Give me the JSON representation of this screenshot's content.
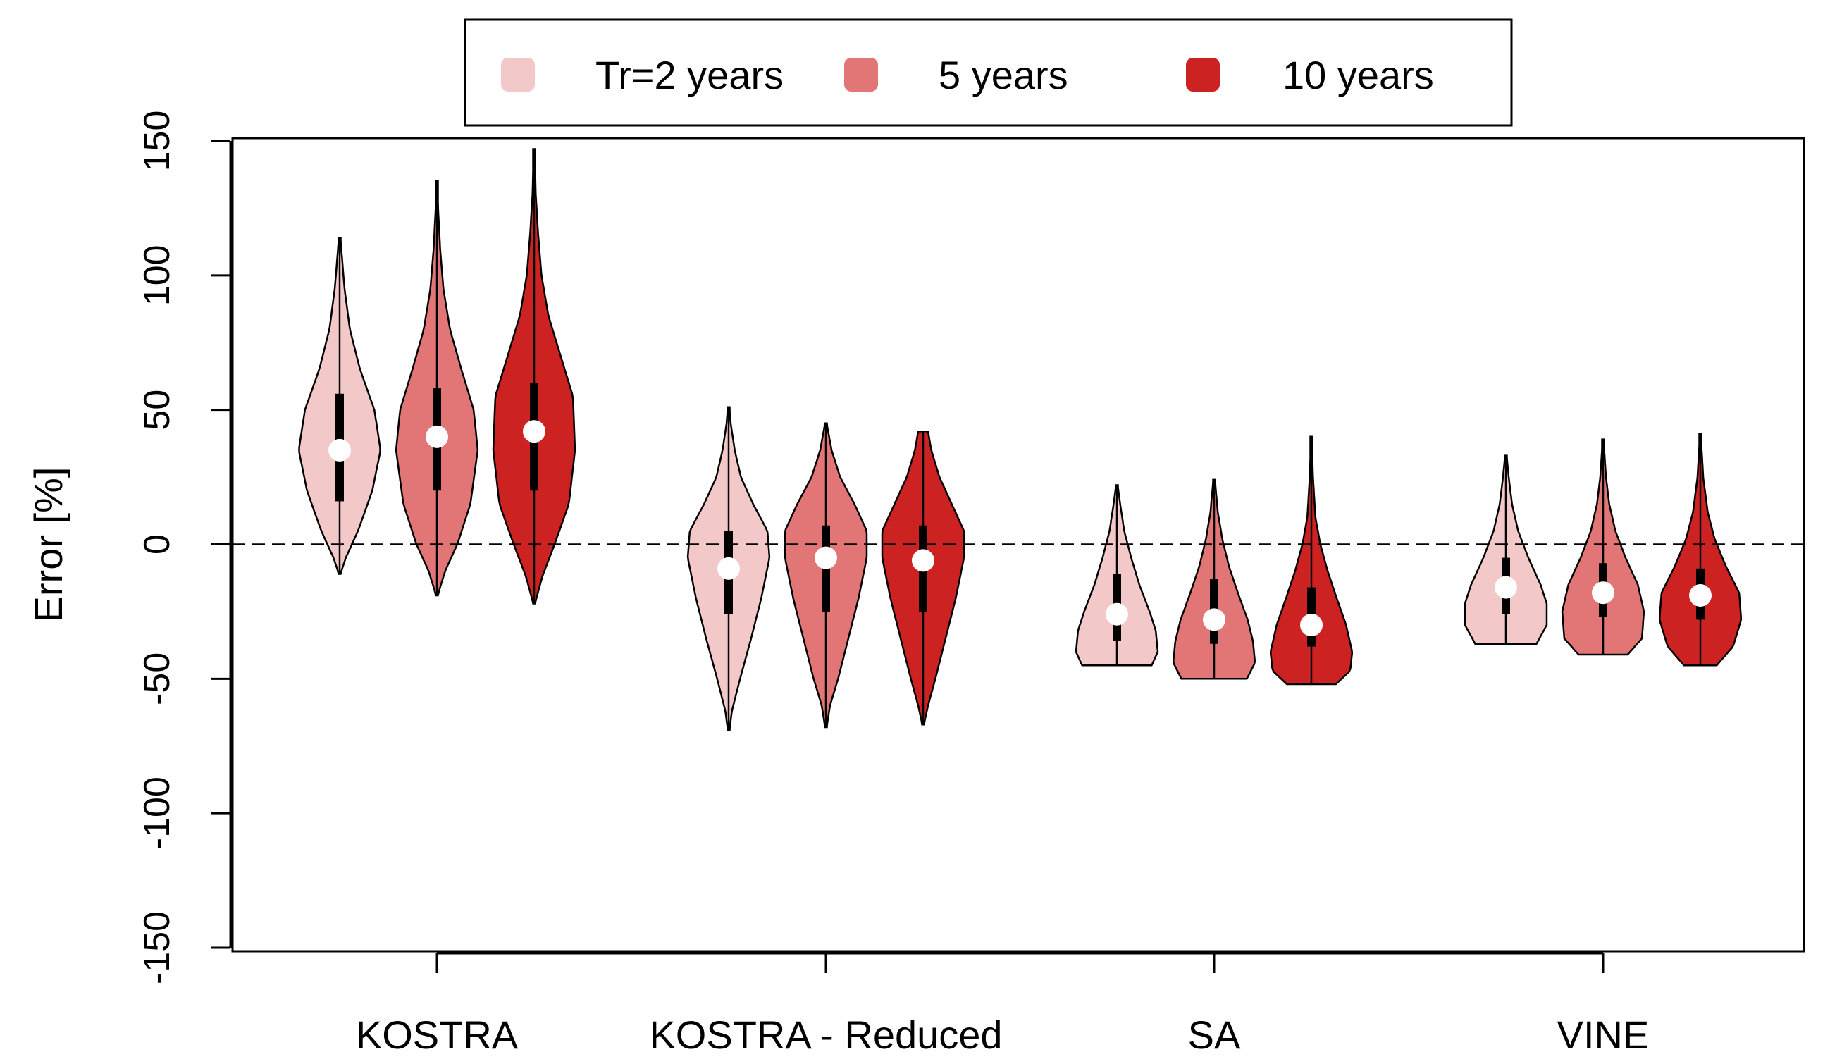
{
  "chart_data": {
    "type": "violin",
    "title": "",
    "xlabel": "",
    "ylabel": "Error [%]",
    "ylim": [
      -150,
      150
    ],
    "yticks": [
      -150,
      -100,
      -50,
      0,
      50,
      100,
      150
    ],
    "ytick_labels": [
      "-150",
      "-100",
      "-50",
      "0",
      "50",
      "100",
      "150"
    ],
    "reference_line": {
      "y": 0,
      "style": "dashed"
    },
    "categories": [
      "KOSTRA",
      "KOSTRA - Reduced",
      "SA",
      "VINE"
    ],
    "legend": {
      "position": "top-center",
      "entries": [
        {
          "label": "Tr=2 years",
          "color": "#f2c8c8"
        },
        {
          "label": "5 years",
          "color": "#e27676"
        },
        {
          "label": "10 years",
          "color": "#cc2222"
        }
      ]
    },
    "series": [
      {
        "name": "Tr=2 years",
        "color": "#f2c8c8",
        "violins": [
          {
            "category": "KOSTRA",
            "min": -11,
            "q1": 16,
            "median": 35,
            "q3": 56,
            "max": 114,
            "profile": [
              [
                -11,
                0.02
              ],
              [
                -5,
                0.15
              ],
              [
                5,
                0.45
              ],
              [
                20,
                0.8
              ],
              [
                35,
                1.0
              ],
              [
                50,
                0.85
              ],
              [
                65,
                0.5
              ],
              [
                80,
                0.25
              ],
              [
                95,
                0.12
              ],
              [
                108,
                0.05
              ],
              [
                114,
                0.02
              ]
            ]
          },
          {
            "category": "KOSTRA - Reduced",
            "min": -69,
            "q1": -26,
            "median": -9,
            "q3": 5,
            "max": 51,
            "profile": [
              [
                -69,
                0.02
              ],
              [
                -62,
                0.08
              ],
              [
                -50,
                0.28
              ],
              [
                -35,
                0.55
              ],
              [
                -20,
                0.8
              ],
              [
                -5,
                1.0
              ],
              [
                5,
                0.95
              ],
              [
                15,
                0.6
              ],
              [
                25,
                0.3
              ],
              [
                35,
                0.15
              ],
              [
                45,
                0.05
              ],
              [
                51,
                0.02
              ]
            ]
          },
          {
            "category": "SA",
            "min": -45,
            "q1": -36,
            "median": -26,
            "q3": -11,
            "max": 22,
            "profile": [
              [
                -45,
                0.85
              ],
              [
                -40,
                1.0
              ],
              [
                -32,
                0.95
              ],
              [
                -25,
                0.8
              ],
              [
                -15,
                0.55
              ],
              [
                -5,
                0.35
              ],
              [
                5,
                0.18
              ],
              [
                15,
                0.08
              ],
              [
                22,
                0.02
              ]
            ]
          },
          {
            "category": "VINE",
            "min": -37,
            "q1": -26,
            "median": -16,
            "q3": -5,
            "max": 33,
            "profile": [
              [
                -37,
                0.75
              ],
              [
                -30,
                1.0
              ],
              [
                -22,
                1.0
              ],
              [
                -15,
                0.85
              ],
              [
                -5,
                0.55
              ],
              [
                5,
                0.3
              ],
              [
                15,
                0.15
              ],
              [
                25,
                0.07
              ],
              [
                33,
                0.02
              ]
            ]
          }
        ]
      },
      {
        "name": "5 years",
        "color": "#e27676",
        "violins": [
          {
            "category": "KOSTRA",
            "min": -19,
            "q1": 20,
            "median": 40,
            "q3": 58,
            "max": 135,
            "profile": [
              [
                -19,
                0.02
              ],
              [
                -10,
                0.2
              ],
              [
                0,
                0.5
              ],
              [
                15,
                0.82
              ],
              [
                35,
                1.0
              ],
              [
                50,
                0.9
              ],
              [
                65,
                0.6
              ],
              [
                80,
                0.32
              ],
              [
                95,
                0.16
              ],
              [
                110,
                0.08
              ],
              [
                125,
                0.03
              ],
              [
                135,
                0.01
              ]
            ]
          },
          {
            "category": "KOSTRA - Reduced",
            "min": -68,
            "q1": -25,
            "median": -5,
            "q3": 7,
            "max": 45,
            "profile": [
              [
                -68,
                0.02
              ],
              [
                -60,
                0.1
              ],
              [
                -50,
                0.3
              ],
              [
                -35,
                0.55
              ],
              [
                -20,
                0.8
              ],
              [
                -5,
                1.0
              ],
              [
                5,
                1.0
              ],
              [
                15,
                0.7
              ],
              [
                25,
                0.35
              ],
              [
                35,
                0.14
              ],
              [
                45,
                0.02
              ]
            ]
          },
          {
            "category": "SA",
            "min": -50,
            "q1": -37,
            "median": -28,
            "q3": -13,
            "max": 24,
            "profile": [
              [
                -50,
                0.8
              ],
              [
                -44,
                1.0
              ],
              [
                -36,
                0.95
              ],
              [
                -28,
                0.82
              ],
              [
                -18,
                0.58
              ],
              [
                -8,
                0.36
              ],
              [
                2,
                0.2
              ],
              [
                12,
                0.09
              ],
              [
                24,
                0.02
              ]
            ]
          },
          {
            "category": "VINE",
            "min": -41,
            "q1": -27,
            "median": -18,
            "q3": -7,
            "max": 39,
            "profile": [
              [
                -41,
                0.6
              ],
              [
                -35,
                0.95
              ],
              [
                -25,
                1.0
              ],
              [
                -15,
                0.85
              ],
              [
                -5,
                0.55
              ],
              [
                5,
                0.3
              ],
              [
                15,
                0.15
              ],
              [
                25,
                0.07
              ],
              [
                39,
                0.01
              ]
            ]
          }
        ]
      },
      {
        "name": "10 years",
        "color": "#cc2222",
        "violins": [
          {
            "category": "KOSTRA",
            "min": -22,
            "q1": 20,
            "median": 42,
            "q3": 60,
            "max": 147,
            "profile": [
              [
                -22,
                0.02
              ],
              [
                -12,
                0.2
              ],
              [
                0,
                0.5
              ],
              [
                15,
                0.85
              ],
              [
                35,
                1.0
              ],
              [
                55,
                0.95
              ],
              [
                70,
                0.65
              ],
              [
                85,
                0.35
              ],
              [
                100,
                0.18
              ],
              [
                115,
                0.1
              ],
              [
                130,
                0.04
              ],
              [
                147,
                0.01
              ]
            ]
          },
          {
            "category": "KOSTRA - Reduced",
            "min": -67,
            "q1": -25,
            "median": -6,
            "q3": 7,
            "max": 42,
            "profile": [
              [
                -67,
                0.02
              ],
              [
                -60,
                0.12
              ],
              [
                -50,
                0.3
              ],
              [
                -35,
                0.55
              ],
              [
                -20,
                0.8
              ],
              [
                -5,
                1.0
              ],
              [
                5,
                1.0
              ],
              [
                15,
                0.7
              ],
              [
                25,
                0.4
              ],
              [
                35,
                0.2
              ],
              [
                42,
                0.12
              ]
            ]
          },
          {
            "category": "SA",
            "min": -52,
            "q1": -38,
            "median": -30,
            "q3": -16,
            "max": 40,
            "profile": [
              [
                -52,
                0.6
              ],
              [
                -47,
                0.95
              ],
              [
                -40,
                1.0
              ],
              [
                -30,
                0.85
              ],
              [
                -20,
                0.62
              ],
              [
                -10,
                0.4
              ],
              [
                0,
                0.22
              ],
              [
                10,
                0.1
              ],
              [
                25,
                0.04
              ],
              [
                40,
                0.01
              ]
            ]
          },
          {
            "category": "VINE",
            "min": -45,
            "q1": -28,
            "median": -19,
            "q3": -9,
            "max": 41,
            "profile": [
              [
                -45,
                0.4
              ],
              [
                -38,
                0.8
              ],
              [
                -28,
                1.0
              ],
              [
                -18,
                0.95
              ],
              [
                -8,
                0.62
              ],
              [
                2,
                0.35
              ],
              [
                12,
                0.18
              ],
              [
                25,
                0.07
              ],
              [
                41,
                0.01
              ]
            ]
          }
        ]
      }
    ]
  }
}
